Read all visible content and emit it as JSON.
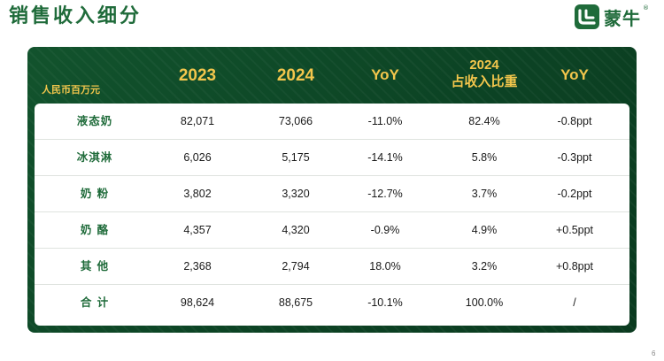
{
  "title": "销售收入细分",
  "logo": {
    "text": "蒙牛",
    "reg": "®"
  },
  "table": {
    "unit": "人民币百万元",
    "headers": {
      "y2023": "2023",
      "y2024": "2024",
      "yoy1": "YoY",
      "share_line1": "2024",
      "share_line2": "占收入比重",
      "yoy2": "YoY"
    },
    "rows": [
      {
        "name": "液态奶",
        "v2023": "82,071",
        "v2024": "73,066",
        "yoy": "-11.0%",
        "share": "82.4%",
        "share_yoy": "-0.8ppt"
      },
      {
        "name": "冰淇淋",
        "v2023": "6,026",
        "v2024": "5,175",
        "yoy": "-14.1%",
        "share": "5.8%",
        "share_yoy": "-0.3ppt"
      },
      {
        "name": "奶 粉",
        "v2023": "3,802",
        "v2024": "3,320",
        "yoy": "-12.7%",
        "share": "3.7%",
        "share_yoy": "-0.2ppt"
      },
      {
        "name": "奶 酪",
        "v2023": "4,357",
        "v2024": "4,320",
        "yoy": "-0.9%",
        "share": "4.9%",
        "share_yoy": "+0.5ppt"
      },
      {
        "name": "其 他",
        "v2023": "2,368",
        "v2024": "2,794",
        "yoy": "18.0%",
        "share": "3.2%",
        "share_yoy": "+0.8ppt"
      },
      {
        "name": "合 计",
        "v2023": "98,624",
        "v2024": "88,675",
        "yoy": "-10.1%",
        "share": "100.0%",
        "share_yoy": "/"
      }
    ]
  },
  "page_number": "6",
  "colors": {
    "brand_green": "#1f6b3a",
    "panel_green": "#0c4324",
    "header_gold": "#f3c64c"
  }
}
